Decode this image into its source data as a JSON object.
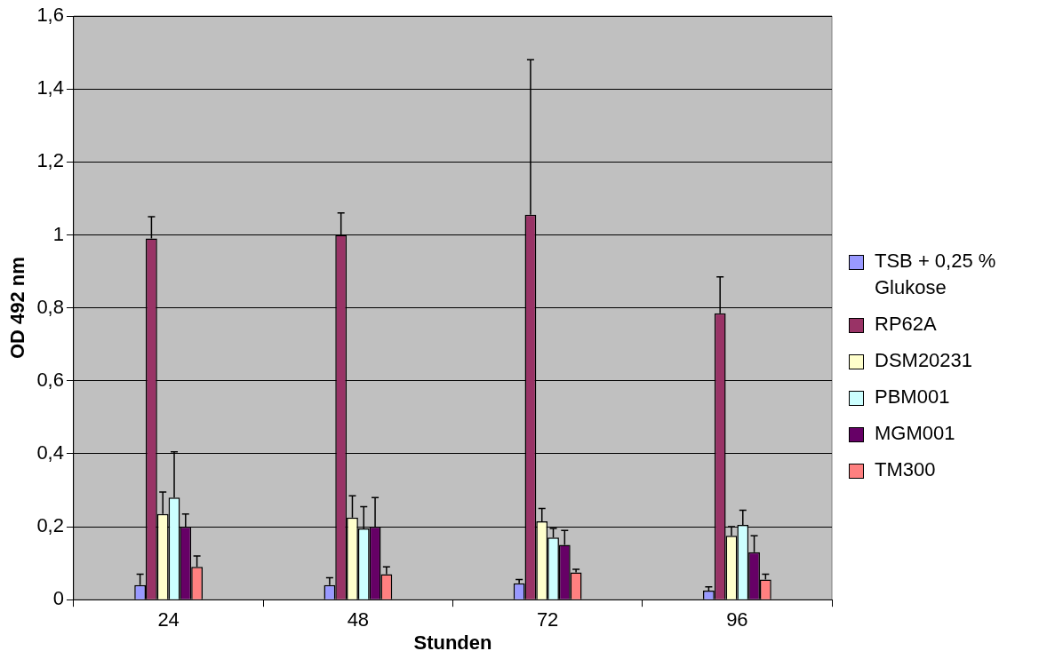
{
  "chart_data": {
    "type": "bar",
    "xlabel": "Stunden",
    "ylabel": "OD 492 nm",
    "categories": [
      "24",
      "48",
      "72",
      "96"
    ],
    "series": [
      {
        "name": "TSB + 0,25 % Glukose",
        "color": "#9999ff",
        "values": [
          0.04,
          0.04,
          0.045,
          0.025
        ],
        "errors": [
          [
            0.04,
            0.07
          ],
          [
            0.04,
            0.06
          ],
          [
            0.045,
            0.055
          ],
          [
            0.025,
            0.035
          ]
        ]
      },
      {
        "name": "RP62A",
        "color": "#993366",
        "values": [
          0.99,
          1.0,
          1.055,
          0.785
        ],
        "errors": [
          [
            0.99,
            1.05
          ],
          [
            1.0,
            1.06
          ],
          [
            1.055,
            1.48
          ],
          [
            0.785,
            0.885
          ]
        ]
      },
      {
        "name": "DSM20231",
        "color": "#ffffcc",
        "values": [
          0.235,
          0.225,
          0.215,
          0.175
        ],
        "errors": [
          [
            0.235,
            0.295
          ],
          [
            0.225,
            0.285
          ],
          [
            0.215,
            0.25
          ],
          [
            0.175,
            0.2
          ]
        ]
      },
      {
        "name": "PBM001",
        "color": "#ccffff",
        "values": [
          0.28,
          0.195,
          0.17,
          0.205
        ],
        "errors": [
          [
            0.28,
            0.405
          ],
          [
            0.195,
            0.255
          ],
          [
            0.17,
            0.195
          ],
          [
            0.205,
            0.245
          ]
        ]
      },
      {
        "name": "MGM001",
        "color": "#660066",
        "values": [
          0.2,
          0.2,
          0.15,
          0.13
        ],
        "errors": [
          [
            0.2,
            0.235
          ],
          [
            0.2,
            0.28
          ],
          [
            0.15,
            0.19
          ],
          [
            0.13,
            0.175
          ]
        ]
      },
      {
        "name": "TM300",
        "color": "#ff8080",
        "values": [
          0.09,
          0.07,
          0.075,
          0.055
        ],
        "errors": [
          [
            0.09,
            0.12
          ],
          [
            0.07,
            0.09
          ],
          [
            0.075,
            0.083
          ],
          [
            0.055,
            0.07
          ]
        ]
      }
    ],
    "ylim": [
      0,
      1.6
    ],
    "yticks": [
      0,
      {
        "value": 0.2,
        "label": "0,2"
      },
      {
        "value": 0.4,
        "label": "0,4"
      },
      {
        "value": 0.6,
        "label": "0,6"
      },
      {
        "value": 0.8,
        "label": "0,8"
      },
      1,
      {
        "value": 1.2,
        "label": "1,2"
      },
      {
        "value": 1.4,
        "label": "1,4"
      },
      {
        "value": 1.6,
        "label": "1,6"
      }
    ],
    "grid": "y",
    "legend": "right"
  }
}
